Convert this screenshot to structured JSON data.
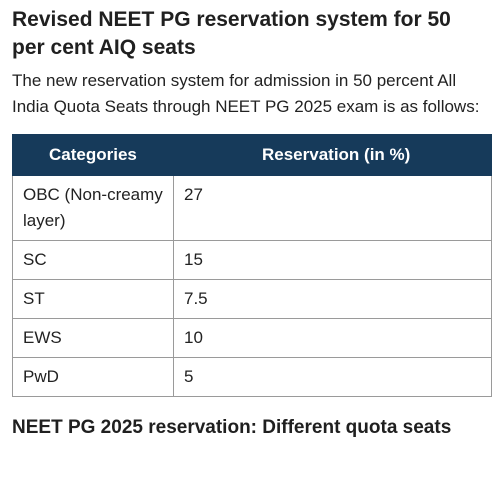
{
  "header": {
    "title": "Revised NEET PG reservation system for 50 per cent AIQ seats",
    "intro": "The new reservation system for admission in 50 percent All India Quota Seats through NEET PG 2025 exam is as follows:"
  },
  "table": {
    "columns": [
      "Categories",
      "Reservation (in %)"
    ],
    "rows": [
      [
        "OBC (Non-creamy layer)",
        27
      ],
      [
        "SC",
        15
      ],
      [
        "ST",
        7.5
      ],
      [
        "EWS",
        10
      ],
      [
        "PwD",
        5
      ]
    ]
  },
  "footer": {
    "heading": "NEET PG 2025 reservation: Different quota seats"
  }
}
